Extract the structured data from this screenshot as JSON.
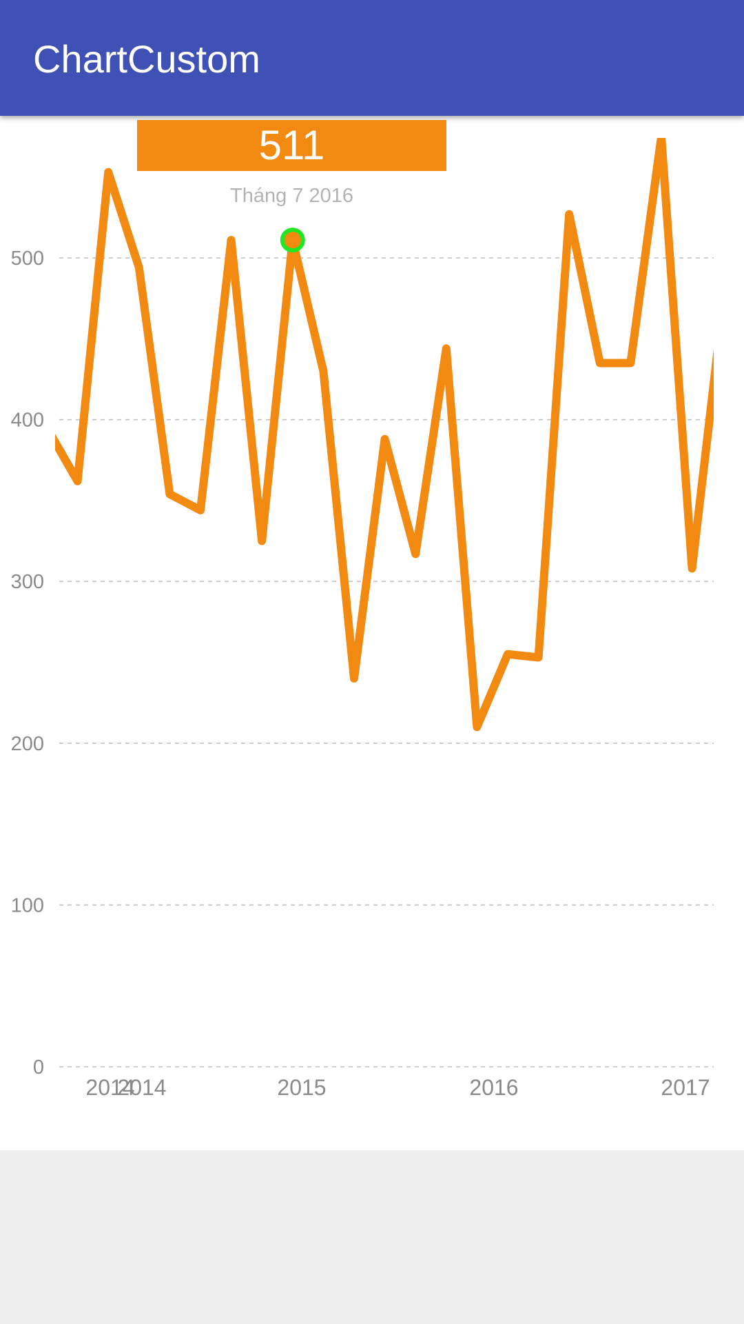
{
  "app_bar": {
    "title": "ChartCustom",
    "background": "#3F51B5"
  },
  "tooltip": {
    "value": "511",
    "date": "Tháng 7 2016",
    "background": "#F28A12"
  },
  "colors": {
    "line": "#F28A12",
    "highlight_ring": "#22E622",
    "grid": "#BDBDBD",
    "tick_label": "#8A8A8A"
  },
  "chart_data": {
    "type": "line",
    "title": "",
    "xlabel": "",
    "ylabel": "",
    "ylim": [
      0,
      575
    ],
    "y_ticks": [
      0,
      100,
      200,
      300,
      400,
      500
    ],
    "x_tick_labels": [
      "2014",
      "2014",
      "2015",
      "2016",
      "2017"
    ],
    "grid": true,
    "legend": "none",
    "series": [
      {
        "values": [
          395,
          362,
          553,
          494,
          354,
          344,
          511,
          325,
          511,
          430,
          240,
          388,
          317,
          444,
          210,
          255,
          253,
          527,
          435,
          435,
          575,
          308,
          470
        ],
        "highlight_index": 8
      }
    ]
  }
}
